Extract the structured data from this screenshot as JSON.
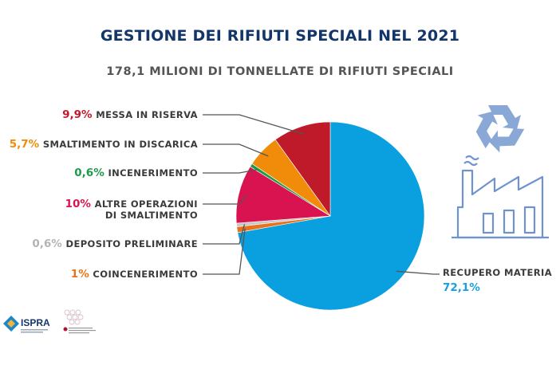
{
  "title": "GESTIONE DEI RIFIUTI SPECIALI NEL 2021",
  "subtitle": "178,1 MILIONI DI TONNELLATE DI RIFIUTI SPECIALI",
  "chart_data": {
    "type": "pie",
    "title": "GESTIONE DEI RIFIUTI SPECIALI NEL 2021",
    "subtitle": "178,1 MILIONI DI TONNELLATE DI RIFIUTI SPECIALI",
    "slices": [
      {
        "label": "RECUPERO MATERIA",
        "pct_label": "72,1%",
        "value": 72.1,
        "color": "#0aa0e0"
      },
      {
        "label": "COINCENERIMENTO",
        "pct_label": "1%",
        "value": 1.0,
        "color": "#e8731c"
      },
      {
        "label": "DEPOSITO PRELIMINARE",
        "pct_label": "0,6%",
        "value": 0.6,
        "color": "#c8c8c8"
      },
      {
        "label": "ALTRE OPERAZIONI DI SMALTIMENTO",
        "label_lines": [
          "ALTRE OPERAZIONI",
          "DI SMALTIMENTO"
        ],
        "pct_label": "10%",
        "value": 10.0,
        "color": "#d8134f"
      },
      {
        "label": "INCENERIMENTO",
        "pct_label": "0,6%",
        "value": 0.6,
        "color": "#1f9a48"
      },
      {
        "label": "SMALTIMENTO IN DISCARICA",
        "pct_label": "5,7%",
        "value": 5.7,
        "color": "#f08c0a"
      },
      {
        "label": "MESSA IN RISERVA",
        "pct_label": "9,9%",
        "value": 9.9,
        "color": "#be1a2a"
      }
    ]
  },
  "icons": [
    "recycle-icon",
    "factory-icon"
  ],
  "logos": {
    "ispra": {
      "name": "ISPRA",
      "tagline": "Istituto Superiore per la Protezione e la Ricerca Ambientale"
    },
    "snpa": {
      "tagline": "Sistema Nazionale per la Protezione dell'Ambiente"
    }
  }
}
